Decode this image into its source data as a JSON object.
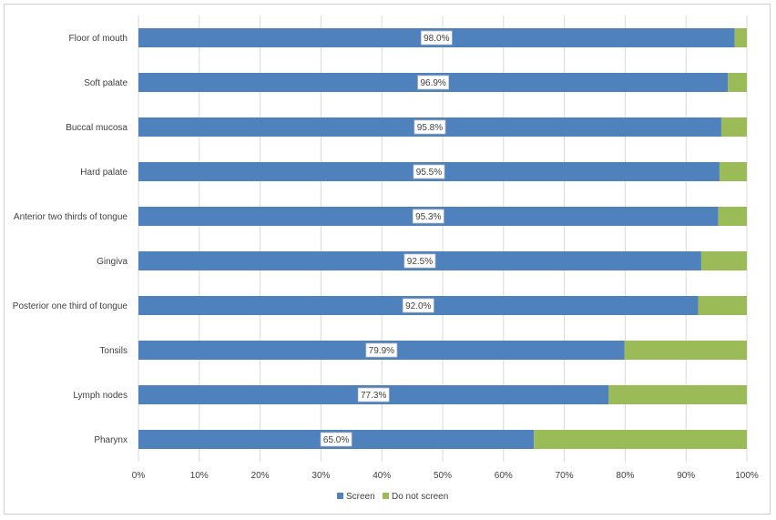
{
  "chart_data": {
    "type": "bar",
    "orientation": "horizontal",
    "stacked": "percent",
    "categories": [
      "Floor of mouth",
      "Soft palate",
      "Buccal mucosa",
      "Hard palate",
      "Anterior two thirds of tongue",
      "Gingiva",
      "Posterior one third of tongue",
      "Tonsils",
      "Lymph nodes",
      "Pharynx"
    ],
    "series": [
      {
        "name": "Screen",
        "color": "#4f81bd",
        "values": [
          98.0,
          96.9,
          95.8,
          95.5,
          95.3,
          92.5,
          92.0,
          79.9,
          77.3,
          65.0
        ],
        "labels": [
          "98.0%",
          "96.9%",
          "95.8%",
          "95.5%",
          "95.3%",
          "92.5%",
          "92.0%",
          "79.9%",
          "77.3%",
          "65.0%"
        ]
      },
      {
        "name": "Do not screen",
        "color": "#9bbb59",
        "values": [
          2.0,
          3.1,
          4.2,
          4.5,
          4.7,
          7.5,
          8.0,
          20.1,
          22.7,
          35.0
        ]
      }
    ],
    "x_ticks": [
      "0%",
      "10%",
      "20%",
      "30%",
      "40%",
      "50%",
      "60%",
      "70%",
      "80%",
      "90%",
      "100%"
    ],
    "xlim": [
      0,
      100
    ],
    "grid": "vertical",
    "legend_position": "bottom"
  }
}
